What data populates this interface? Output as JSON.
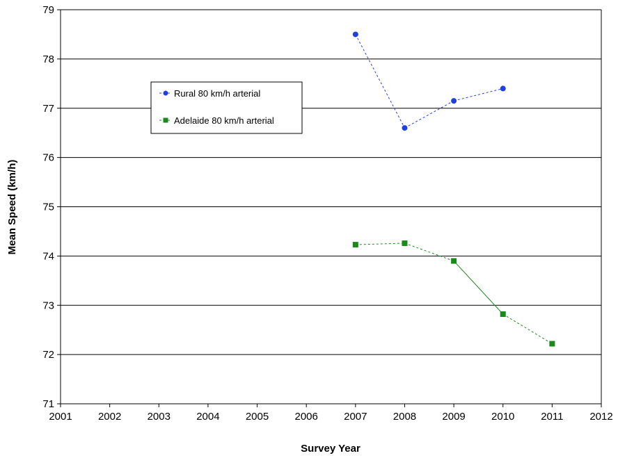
{
  "chart_data": {
    "type": "line",
    "title": "",
    "xlabel": "Survey Year",
    "ylabel": "Mean Speed (km/h)",
    "xlim": [
      2001,
      2012
    ],
    "ylim": [
      71,
      79
    ],
    "x_ticks": [
      "2001",
      "2002",
      "2003",
      "2004",
      "2005",
      "2006",
      "2007",
      "2008",
      "2009",
      "2010",
      "2011",
      "2012"
    ],
    "y_ticks": [
      "71",
      "72",
      "73",
      "74",
      "75",
      "76",
      "77",
      "78",
      "79"
    ],
    "grid": "horizontal",
    "legend_position": "upper-left",
    "series": [
      {
        "name": "Rural 80 km/h arterial",
        "color": "#1f3fe0",
        "marker": "circle",
        "points": [
          {
            "x": 2007,
            "y": 78.5
          },
          {
            "x": 2008,
            "y": 76.6
          },
          {
            "x": 2009,
            "y": 77.15
          },
          {
            "x": 2010,
            "y": 77.4
          }
        ],
        "segment_styles": [
          "dashed",
          "dashed",
          "dashed"
        ]
      },
      {
        "name": "Adelaide 80 km/h arterial",
        "color": "#1a8a1a",
        "marker": "square",
        "points": [
          {
            "x": 2007,
            "y": 74.23
          },
          {
            "x": 2008,
            "y": 74.26
          },
          {
            "x": 2009,
            "y": 73.9
          },
          {
            "x": 2010,
            "y": 72.82
          },
          {
            "x": 2011,
            "y": 72.22
          }
        ],
        "segment_styles": [
          "dashed",
          "dashed",
          "solid",
          "dashed"
        ]
      }
    ]
  }
}
